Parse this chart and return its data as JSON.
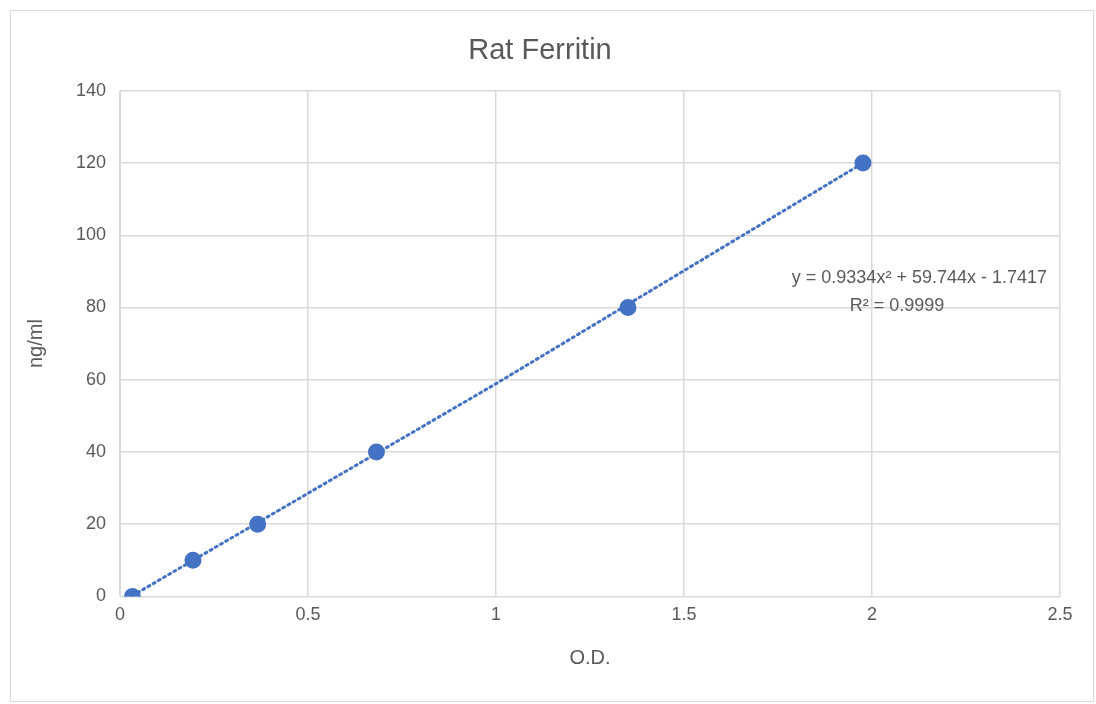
{
  "chart_data": {
    "type": "scatter",
    "title": "Rat Ferritin",
    "xlabel": "O.D.",
    "ylabel": "ng/ml",
    "xlim": [
      0,
      2.5
    ],
    "xticks": [
      0,
      0.5,
      1,
      1.5,
      2,
      2.5
    ],
    "ylim": [
      0,
      140
    ],
    "yticks": [
      0,
      20,
      40,
      60,
      80,
      100,
      120,
      140
    ],
    "grid": true,
    "legend": false,
    "marker": "circle",
    "annotations": [
      "y = 0.9334x² + 59.744x - 1.7417",
      "R² = 0.9999"
    ],
    "series": [
      {
        "type": "scatter",
        "color": "#4472c4",
        "x": [
          0.033,
          0.194,
          0.366,
          0.682,
          1.351,
          1.976
        ],
        "values": [
          0,
          10,
          20,
          40,
          80,
          120
        ]
      },
      {
        "type": "line",
        "color": "#4472c4",
        "line_style": "dotted",
        "marker": "none",
        "x": [
          0.033,
          1.0,
          1.976
        ],
        "values": [
          0.2,
          58.9,
          120
        ]
      }
    ]
  }
}
